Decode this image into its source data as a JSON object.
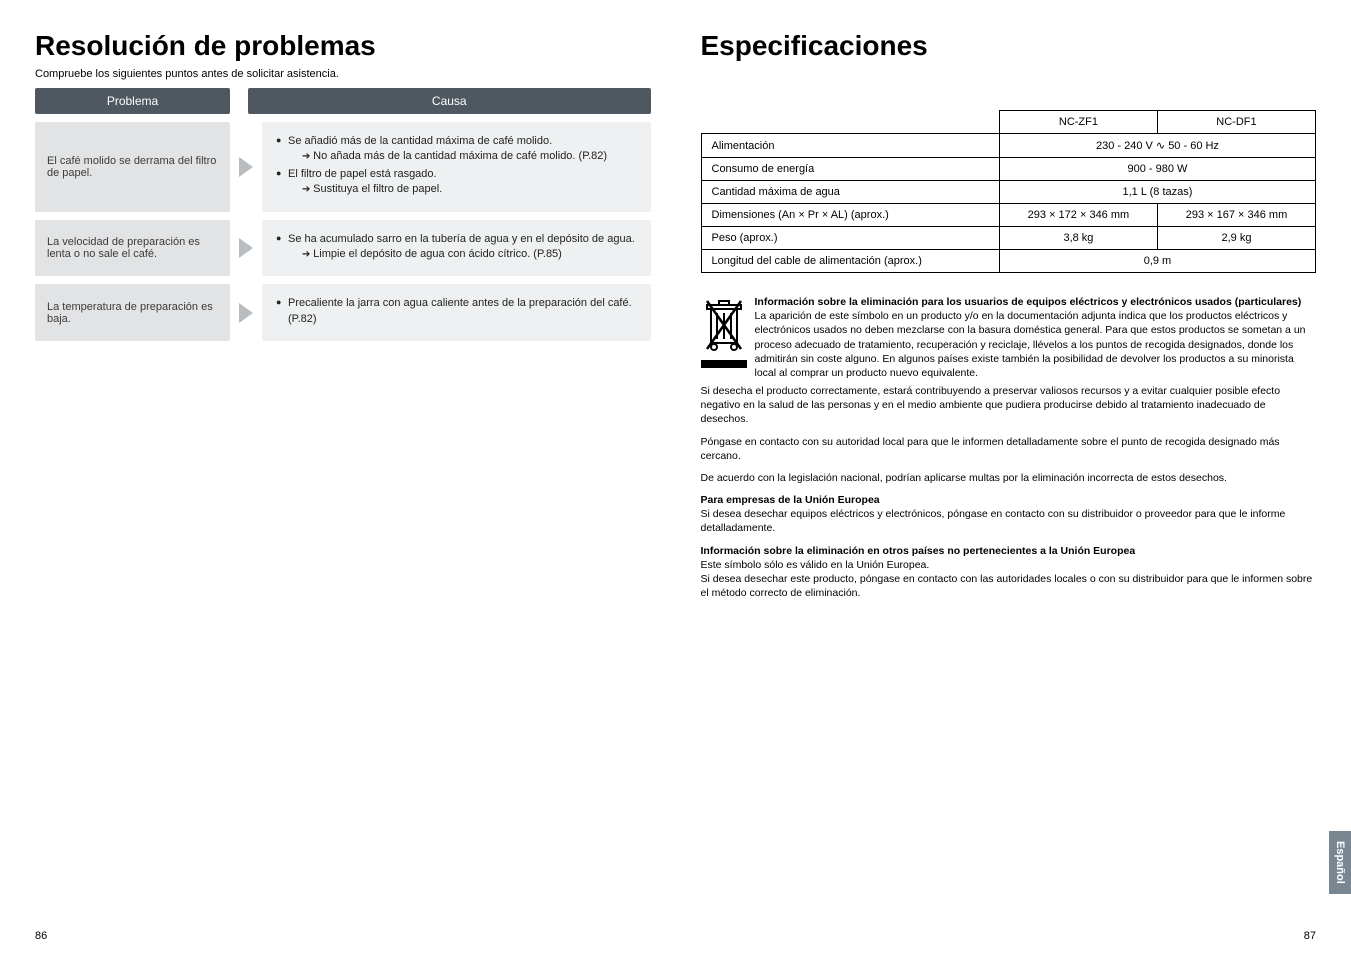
{
  "left": {
    "title": "Resolución de problemas",
    "subtitle": "Compruebe los siguientes puntos antes de solicitar asistencia.",
    "hdr_problem": "Problema",
    "hdr_cause": "Causa",
    "rows": [
      {
        "problem": "El café molido se derrama del filtro de papel.",
        "cause_html": "<ul><li>Se añadió más de la cantidad máxima de café molido.<span class='sub-arrow'>No añada más de la cantidad máxima de café molido. (P.82)</span></li><li>El filtro de papel está rasgado.<span class='sub-arrow'>Sustituya el filtro de papel.</span></li></ul>"
      },
      {
        "problem": "La velocidad de preparación es lenta o no sale el café.",
        "cause_html": "<ul><li>Se ha acumulado sarro en la tubería de agua y en el depósito de agua.<span class='sub-arrow'>Limpie el depósito de agua con ácido cítrico. (P.85)</span></li></ul>"
      },
      {
        "problem": "La temperatura de preparación es baja.",
        "cause_html": "<ul><li>Precaliente la jarra con agua caliente antes de la preparación del café. (P.82)</li></ul>"
      }
    ]
  },
  "right": {
    "title": "Especificaciones",
    "spec": {
      "col1": "NC-ZF1",
      "col2": "NC-DF1",
      "rows": [
        {
          "label": "Alimentación",
          "v1": "230 - 240 V ∿ 50 - 60 Hz",
          "span": true
        },
        {
          "label": "Consumo de energía",
          "v1": "900 - 980 W",
          "span": true
        },
        {
          "label": "Cantidad máxima de agua",
          "v1": "1,1 L (8 tazas)",
          "span": true
        },
        {
          "label": "Dimensiones (An × Pr × AL) (aprox.)",
          "v1": "293 × 172 × 346 mm",
          "v2": "293 × 167 × 346 mm",
          "span": false
        },
        {
          "label": "Peso (aprox.)",
          "v1": "3,8 kg",
          "v2": "2,9 kg",
          "span": false
        },
        {
          "label": "Longitud del cable de alimentación (aprox.)",
          "v1": "0,9 m",
          "span": true
        }
      ]
    },
    "weee_title": "Información sobre la eliminación para los usuarios de equipos eléctricos y electrónicos usados (particulares)",
    "weee_body": "La aparición de este símbolo en un producto y/o en la documentación adjunta indica que los productos eléctricos y electrónicos usados no deben mezclarse con la basura doméstica general. Para que estos productos se sometan a un proceso adecuado de tratamiento, recuperación y reciclaje, llévelos a los puntos de recogida designados, donde los admitirán sin coste alguno. En algunos países existe también la posibilidad de devolver los productos a su minorista local al comprar un producto nuevo equivalente.",
    "para1": "Si desecha el producto correctamente, estará contribuyendo a preservar valiosos recursos y a evitar cualquier posible efecto negativo en la salud de las personas y en el medio ambiente que pudiera producirse debido al tratamiento inadecuado de desechos.",
    "para2": "Póngase en contacto con su autoridad local para que le informen detalladamente sobre el punto de recogida designado más cercano.",
    "para3": "De acuerdo con la legislación nacional, podrían aplicarse multas por la eliminación incorrecta de estos desechos.",
    "biz_title": "Para empresas de la Unión Europea",
    "biz_body": "Si desea desechar equipos eléctricos y electrónicos, póngase en contacto con su distribuidor o proveedor para que le informe detalladamente.",
    "noneu_title": "Información sobre la eliminación en otros países no pertenecientes a la Unión Europea",
    "noneu_body1": "Este símbolo sólo es válido en la Unión Europea.",
    "noneu_body2": "Si desea desechar este producto, póngase en contacto con las autoridades locales o con su distribuidor para que le informen sobre el método correcto de eliminación."
  },
  "footer": {
    "left_pg": "86",
    "right_pg": "87",
    "lang": "Español"
  }
}
